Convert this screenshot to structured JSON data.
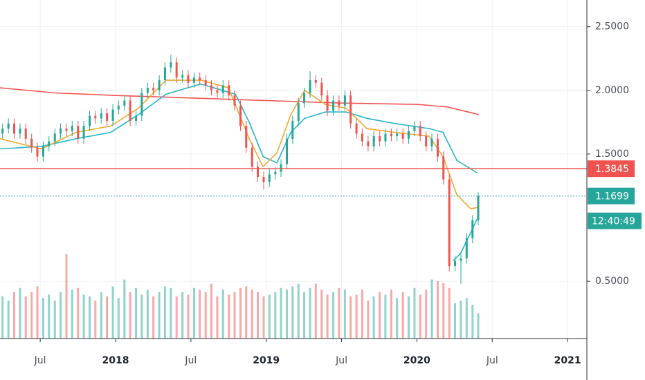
{
  "chart_data": {
    "type": "candlestick",
    "x": [
      2017.25,
      2017.289,
      2017.327,
      2017.366,
      2017.404,
      2017.443,
      2017.481,
      2017.52,
      2017.558,
      2017.597,
      2017.635,
      2017.674,
      2017.712,
      2017.751,
      2017.789,
      2017.828,
      2017.866,
      2017.905,
      2017.943,
      2017.982,
      2018.02,
      2018.059,
      2018.097,
      2018.136,
      2018.174,
      2018.213,
      2018.251,
      2018.29,
      2018.328,
      2018.367,
      2018.405,
      2018.444,
      2018.482,
      2018.521,
      2018.559,
      2018.598,
      2018.636,
      2018.675,
      2018.713,
      2018.752,
      2018.79,
      2018.829,
      2018.867,
      2018.906,
      2018.944,
      2018.983,
      2019.021,
      2019.06,
      2019.098,
      2019.137,
      2019.175,
      2019.214,
      2019.252,
      2019.291,
      2019.329,
      2019.368,
      2019.406,
      2019.445,
      2019.483,
      2019.522,
      2019.56,
      2019.599,
      2019.637,
      2019.676,
      2019.714,
      2019.753,
      2019.791,
      2019.83,
      2019.868,
      2019.907,
      2019.945,
      2019.984,
      2020.022,
      2020.061,
      2020.099,
      2020.138,
      2020.176,
      2020.215,
      2020.253,
      2020.292,
      2020.33,
      2020.369,
      2020.407
    ],
    "open": [
      1.66,
      1.7,
      1.74,
      1.66,
      1.7,
      1.62,
      1.55,
      1.48,
      1.56,
      1.6,
      1.66,
      1.7,
      1.68,
      1.72,
      1.62,
      1.72,
      1.8,
      1.78,
      1.82,
      1.76,
      1.85,
      1.88,
      1.92,
      1.76,
      1.8,
      1.98,
      2.02,
      2.0,
      2.08,
      2.18,
      2.22,
      2.1,
      2.12,
      2.06,
      2.1,
      2.08,
      2.04,
      2.0,
      1.98,
      2.04,
      1.96,
      1.88,
      1.72,
      1.55,
      1.4,
      1.32,
      1.28,
      1.34,
      1.36,
      1.42,
      1.62,
      1.76,
      1.9,
      1.98,
      2.08,
      2.06,
      1.96,
      1.84,
      1.92,
      1.88,
      1.96,
      1.74,
      1.66,
      1.6,
      1.56,
      1.64,
      1.6,
      1.66,
      1.64,
      1.66,
      1.62,
      1.68,
      1.72,
      1.64,
      1.56,
      1.62,
      1.48,
      1.3,
      0.62,
      0.66,
      0.68,
      0.84,
      0.98
    ],
    "high": [
      1.74,
      1.78,
      1.78,
      1.74,
      1.74,
      1.66,
      1.59,
      1.6,
      1.64,
      1.7,
      1.74,
      1.74,
      1.76,
      1.76,
      1.76,
      1.84,
      1.84,
      1.86,
      1.86,
      1.89,
      1.92,
      1.96,
      1.96,
      1.84,
      2.02,
      2.06,
      2.06,
      2.12,
      2.22,
      2.28,
      2.26,
      2.16,
      2.16,
      2.14,
      2.14,
      2.12,
      2.08,
      2.04,
      2.08,
      2.08,
      2.0,
      1.92,
      1.76,
      1.59,
      1.44,
      1.36,
      1.38,
      1.4,
      1.46,
      1.66,
      1.8,
      1.94,
      2.02,
      2.15,
      2.12,
      2.1,
      2.0,
      1.96,
      1.96,
      2.0,
      2.0,
      1.78,
      1.7,
      1.64,
      1.68,
      1.68,
      1.7,
      1.7,
      1.7,
      1.7,
      1.72,
      1.76,
      1.76,
      1.68,
      1.66,
      1.66,
      1.52,
      1.34,
      0.7,
      0.72,
      0.88,
      1.02,
      1.2
    ],
    "low": [
      1.62,
      1.66,
      1.62,
      1.62,
      1.58,
      1.51,
      1.44,
      1.44,
      1.52,
      1.56,
      1.62,
      1.64,
      1.64,
      1.58,
      1.58,
      1.68,
      1.74,
      1.74,
      1.72,
      1.72,
      1.81,
      1.84,
      1.72,
      1.72,
      1.76,
      1.94,
      1.96,
      1.96,
      2.04,
      2.14,
      2.06,
      2.06,
      2.02,
      2.02,
      2.04,
      2.0,
      1.96,
      1.94,
      1.94,
      1.92,
      1.84,
      1.68,
      1.51,
      1.36,
      1.28,
      1.22,
      1.24,
      1.3,
      1.32,
      1.38,
      1.58,
      1.72,
      1.86,
      1.94,
      2.02,
      1.92,
      1.8,
      1.8,
      1.84,
      1.84,
      1.7,
      1.62,
      1.56,
      1.52,
      1.52,
      1.56,
      1.56,
      1.6,
      1.6,
      1.58,
      1.58,
      1.64,
      1.6,
      1.52,
      1.52,
      1.44,
      1.26,
      0.58,
      0.58,
      0.48,
      0.64,
      0.8,
      0.94
    ],
    "close": [
      1.7,
      1.74,
      1.66,
      1.7,
      1.62,
      1.55,
      1.48,
      1.56,
      1.6,
      1.66,
      1.7,
      1.68,
      1.72,
      1.62,
      1.72,
      1.8,
      1.78,
      1.82,
      1.76,
      1.85,
      1.88,
      1.92,
      1.76,
      1.8,
      1.98,
      2.02,
      2.0,
      2.08,
      2.18,
      2.22,
      2.1,
      2.12,
      2.06,
      2.1,
      2.08,
      2.04,
      2.0,
      1.98,
      2.04,
      1.96,
      1.88,
      1.72,
      1.55,
      1.4,
      1.32,
      1.28,
      1.34,
      1.36,
      1.42,
      1.62,
      1.76,
      1.9,
      1.98,
      2.08,
      2.06,
      1.96,
      1.84,
      1.92,
      1.88,
      1.96,
      1.74,
      1.66,
      1.6,
      1.56,
      1.64,
      1.6,
      1.66,
      1.64,
      1.66,
      1.62,
      1.68,
      1.72,
      1.64,
      1.56,
      1.62,
      1.48,
      1.3,
      0.62,
      0.66,
      0.68,
      0.84,
      0.98,
      1.1699
    ],
    "volume": [
      50,
      45,
      55,
      60,
      50,
      55,
      62,
      48,
      52,
      45,
      55,
      100,
      58,
      60,
      52,
      50,
      45,
      55,
      50,
      62,
      48,
      70,
      55,
      60,
      52,
      58,
      50,
      55,
      62,
      60,
      50,
      55,
      52,
      60,
      58,
      55,
      65,
      50,
      58,
      52,
      55,
      60,
      62,
      58,
      55,
      50,
      52,
      55,
      60,
      58,
      62,
      65,
      55,
      60,
      65,
      58,
      52,
      55,
      60,
      58,
      50,
      52,
      58,
      45,
      50,
      55,
      52,
      58,
      48,
      55,
      50,
      60,
      52,
      58,
      70,
      68,
      66,
      60,
      42,
      45,
      48,
      40,
      30
    ],
    "up_color": "#26a69a",
    "down_color": "#ef5350",
    "lines": [
      {
        "color": "#ef5350",
        "x": [
          2017.233,
          2017.6,
          2018.0,
          2018.5,
          2019.0,
          2019.5,
          2020.0,
          2020.2,
          2020.41
        ],
        "values": [
          2.02,
          1.98,
          1.96,
          1.94,
          1.92,
          1.9,
          1.89,
          1.87,
          1.81
        ]
      },
      {
        "color": "#26b5c7",
        "x": [
          2017.233,
          2017.508,
          2017.738,
          2017.968,
          2018.152,
          2018.335,
          2018.565,
          2018.795,
          2018.887,
          2018.979,
          2019.071,
          2019.163,
          2019.255,
          2019.393,
          2019.53,
          2019.668,
          2019.852,
          2020.081,
          2020.173,
          2020.265,
          2020.403
        ],
        "values": [
          1.54,
          1.56,
          1.62,
          1.67,
          1.81,
          1.97,
          2.05,
          1.97,
          1.75,
          1.48,
          1.43,
          1.67,
          1.78,
          1.83,
          1.83,
          1.78,
          1.74,
          1.7,
          1.67,
          1.45,
          1.35
        ]
      },
      {
        "color": "#f0a830",
        "x": [
          2017.233,
          2017.508,
          2017.738,
          2017.968,
          2018.152,
          2018.335,
          2018.565,
          2018.749,
          2018.887,
          2018.979,
          2019.071,
          2019.163,
          2019.255,
          2019.393,
          2019.53,
          2019.668,
          2019.852,
          2020.081,
          2020.173,
          2020.265,
          2020.357,
          2020.403
        ],
        "values": [
          1.62,
          1.54,
          1.67,
          1.72,
          1.86,
          2.08,
          2.08,
          2.02,
          1.62,
          1.4,
          1.51,
          1.81,
          2.0,
          1.89,
          1.86,
          1.7,
          1.67,
          1.64,
          1.48,
          1.18,
          1.07,
          1.08
        ]
      },
      {
        "color": "#26b5c7",
        "x": [
          2020.24,
          2020.29,
          2020.34,
          2020.4
        ],
        "values": [
          0.66,
          0.72,
          0.84,
          0.99
        ]
      }
    ],
    "hline": {
      "value": 1.3845,
      "color": "#ef5350"
    },
    "countdown": "12:40:49",
    "xlim": [
      2017.233,
      2021.128
    ],
    "ylim": [
      0.05,
      2.71
    ],
    "xticks": [
      {
        "value": 2017.5,
        "label": "Jul"
      },
      2018,
      {
        "value": 2018.5,
        "label": "Jul"
      },
      2019,
      {
        "value": 2019.5,
        "label": "Jul"
      },
      2020,
      {
        "value": 2020.5,
        "label": "Jul"
      },
      2021
    ],
    "yticks": [
      {
        "value": 0.5,
        "label": "0.5000"
      },
      {
        "value": 1.5,
        "label": "1.5000"
      },
      {
        "value": 2.0,
        "label": "2.0000"
      },
      {
        "value": 2.5,
        "label": "2.5000"
      }
    ],
    "grid": true
  }
}
